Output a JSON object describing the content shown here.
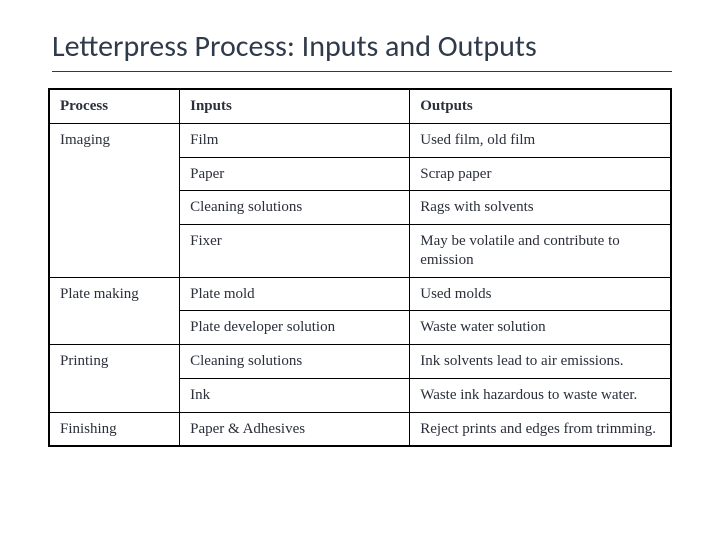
{
  "title": "Letterpress Process: Inputs and Outputs",
  "table": {
    "type": "table",
    "background_color": "#ffffff",
    "border_color": "#000000",
    "text_color": "#2a2f3a",
    "title_color": "#2f3a4a",
    "header_fontweight": 700,
    "body_fontsize": 15,
    "title_fontsize": 30,
    "col_widths_pct": [
      21,
      37,
      42
    ],
    "columns": [
      "Process",
      "Inputs",
      "Outputs"
    ],
    "groups": [
      {
        "process": "Imaging",
        "rows": [
          {
            "input": "Film",
            "output": "Used film, old film"
          },
          {
            "input": "Paper",
            "output": "Scrap paper"
          },
          {
            "input": "Cleaning solutions",
            "output": "Rags with solvents"
          },
          {
            "input": "Fixer",
            "output": "May be volatile and contribute to emission"
          }
        ]
      },
      {
        "process": "Plate making",
        "rows": [
          {
            "input": "Plate mold",
            "output": "Used molds"
          },
          {
            "input": "Plate developer solution",
            "output": "Waste water solution"
          }
        ]
      },
      {
        "process": "Printing",
        "rows": [
          {
            "input": "Cleaning solutions",
            "output": "Ink solvents lead to air emissions."
          },
          {
            "input": "Ink",
            "output": "Waste ink hazardous to waste water."
          }
        ]
      },
      {
        "process": "Finishing",
        "rows": [
          {
            "input": "Paper & Adhesives",
            "output": "Reject prints and edges from trimming."
          }
        ]
      }
    ]
  }
}
